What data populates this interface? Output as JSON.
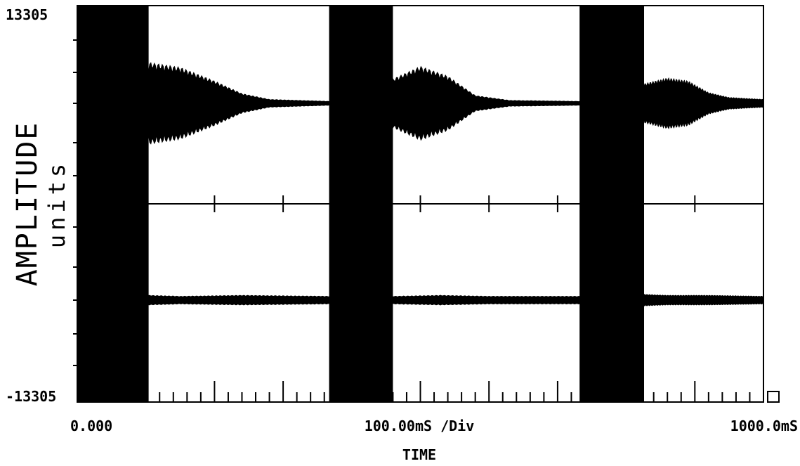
{
  "chart_data": {
    "type": "line",
    "title": "",
    "ylabel": "AMPLITUDE",
    "yunits": "units",
    "xlabel": "TIME",
    "x_start_label": "0.000",
    "x_scale_label": "100.00mS /Div",
    "x_end_label": "1000.0mS",
    "y_max_label": "13305",
    "y_min_label": "-13305",
    "x_unit": "ms",
    "xlim": [
      0,
      1000
    ],
    "ylim": [
      -13305,
      13305
    ],
    "grid": false,
    "color": "#000000",
    "channels": [
      {
        "position": "upper",
        "saturated_bursts_ms": [
          [
            0,
            104
          ],
          [
            367,
            460
          ],
          [
            732,
            826
          ]
        ],
        "decay_segments": [
          {
            "x": [
              104,
              150,
              200,
              240,
              280,
              367
            ],
            "amplitude_frac": [
              0.42,
              0.37,
              0.23,
              0.1,
              0.04,
              0.02
            ]
          },
          {
            "x": [
              460,
              500,
              540,
              580,
              630,
              732
            ],
            "amplitude_frac": [
              0.25,
              0.38,
              0.28,
              0.08,
              0.03,
              0.02
            ]
          },
          {
            "x": [
              826,
              860,
              890,
              920,
              950,
              1000
            ],
            "amplitude_frac": [
              0.2,
              0.26,
              0.23,
              0.11,
              0.06,
              0.04
            ]
          }
        ]
      },
      {
        "position": "lower",
        "saturated_bursts_ms": [
          [
            0,
            104
          ],
          [
            367,
            460
          ],
          [
            732,
            826
          ]
        ],
        "decay_segments": [
          {
            "x": [
              104,
              150,
              240,
              367
            ],
            "amplitude_frac": [
              0.05,
              0.04,
              0.05,
              0.04
            ]
          },
          {
            "x": [
              460,
              530,
              600,
              732
            ],
            "amplitude_frac": [
              0.04,
              0.05,
              0.04,
              0.04
            ]
          },
          {
            "x": [
              826,
              860,
              920,
              1000
            ],
            "amplitude_frac": [
              0.06,
              0.05,
              0.05,
              0.04
            ]
          }
        ]
      }
    ]
  }
}
